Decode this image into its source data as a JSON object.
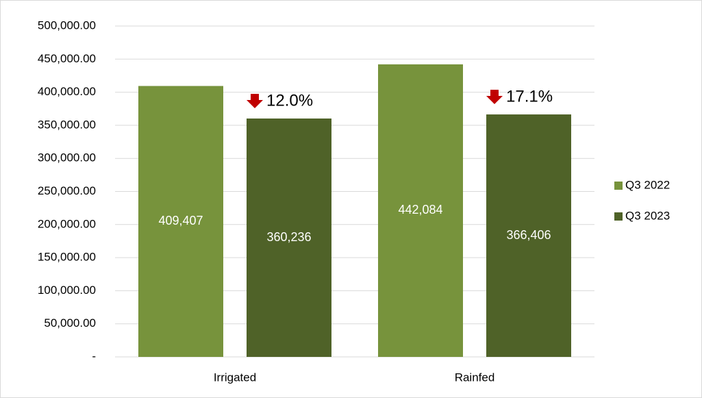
{
  "chart_data": {
    "type": "bar",
    "categories": [
      "Irrigated",
      "Rainfed"
    ],
    "series": [
      {
        "name": "Q3 2022",
        "color": "#77933c",
        "values": [
          409407,
          442084
        ],
        "value_labels": [
          "409,407",
          "442,084"
        ]
      },
      {
        "name": "Q3 2023",
        "color": "#4f6228",
        "values": [
          360236,
          366406
        ],
        "value_labels": [
          "360,236",
          "366,406"
        ]
      }
    ],
    "annotations": [
      "12.0%",
      "17.1%"
    ],
    "annotation_color": "#c00000",
    "ylim": [
      0,
      500000
    ],
    "yticks": [
      {
        "value": 0,
        "label": "-"
      },
      {
        "value": 50000,
        "label": "50,000.00"
      },
      {
        "value": 100000,
        "label": "100,000.00"
      },
      {
        "value": 150000,
        "label": "150,000.00"
      },
      {
        "value": 200000,
        "label": "200,000.00"
      },
      {
        "value": 250000,
        "label": "250,000.00"
      },
      {
        "value": 300000,
        "label": "300,000.00"
      },
      {
        "value": 350000,
        "label": "350,000.00"
      },
      {
        "value": 400000,
        "label": "400,000.00"
      },
      {
        "value": 450000,
        "label": "450,000.00"
      },
      {
        "value": 500000,
        "label": "500,000.00"
      }
    ],
    "grid": true,
    "legend": "right"
  }
}
